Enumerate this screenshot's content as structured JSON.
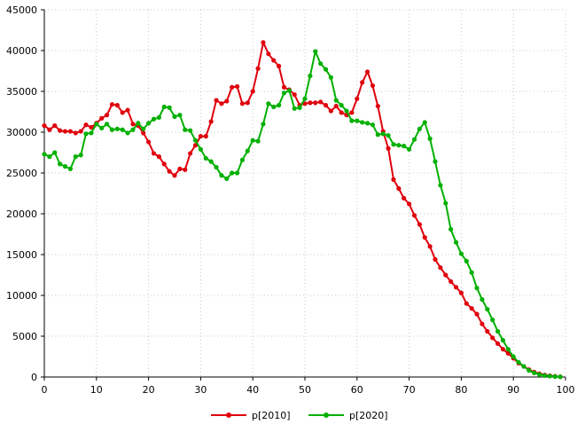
{
  "chart_data": {
    "type": "line",
    "title": "",
    "xlabel": "",
    "ylabel": "",
    "xlim": [
      0,
      100
    ],
    "ylim": [
      0,
      45000
    ],
    "xticks": [
      0,
      10,
      20,
      30,
      40,
      50,
      60,
      70,
      80,
      90,
      100
    ],
    "xtick_labels": [
      "0",
      "10",
      "20",
      "30",
      "40",
      "50",
      "60",
      "70",
      "80",
      "90",
      "100"
    ],
    "yticks": [
      0,
      5000,
      10000,
      15000,
      20000,
      25000,
      30000,
      35000,
      40000,
      45000
    ],
    "ytick_labels": [
      "0",
      "5000",
      "10000",
      "15000",
      "20000",
      "25000",
      "30000",
      "35000",
      "40000",
      "45000"
    ],
    "grid": true,
    "legend_position": "bottom-center",
    "series": [
      {
        "name": "p[2010]",
        "color": "#e0000c",
        "x": [
          0,
          1,
          2,
          3,
          4,
          5,
          6,
          7,
          8,
          9,
          10,
          11,
          12,
          13,
          14,
          15,
          16,
          17,
          18,
          19,
          20,
          21,
          22,
          23,
          24,
          25,
          26,
          27,
          28,
          29,
          30,
          31,
          32,
          33,
          34,
          35,
          36,
          37,
          38,
          39,
          40,
          41,
          42,
          43,
          44,
          45,
          46,
          47,
          48,
          49,
          50,
          51,
          52,
          53,
          54,
          55,
          56,
          57,
          58,
          59,
          60,
          61,
          62,
          63,
          64,
          65,
          66,
          67,
          68,
          69,
          70,
          71,
          72,
          73,
          74,
          75,
          76,
          77,
          78,
          79,
          80,
          81,
          82,
          83,
          84,
          85,
          86,
          87,
          88,
          89,
          90,
          91,
          92,
          93,
          94,
          95,
          96,
          97,
          98,
          99
        ],
        "values": [
          30800,
          30300,
          30800,
          30200,
          30100,
          30100,
          29900,
          30100,
          30900,
          30600,
          31100,
          31700,
          32100,
          33400,
          33300,
          32400,
          32700,
          31000,
          30800,
          29900,
          28800,
          27400,
          27000,
          26100,
          25200,
          24700,
          25500,
          25400,
          27400,
          28400,
          29500,
          29500,
          31300,
          33900,
          33500,
          33800,
          35500,
          35600,
          33500,
          33600,
          35000,
          37800,
          41000,
          39600,
          38800,
          38100,
          35500,
          35200,
          34600,
          33300,
          33500,
          33600,
          33600,
          33700,
          33300,
          32600,
          33200,
          32400,
          32100,
          32400,
          34100,
          36100,
          37400,
          35700,
          33200,
          30100,
          28000,
          24200,
          23100,
          21900,
          21200,
          19800,
          18700,
          17100,
          16000,
          14400,
          13400,
          12500,
          11700,
          11000,
          10300,
          9000,
          8400,
          7700,
          6500,
          5600,
          4800,
          4100,
          3400,
          2900,
          2300,
          1700,
          1300,
          900,
          600,
          400,
          250,
          150,
          80,
          30
        ]
      },
      {
        "name": "p[2020]",
        "color": "#00b000",
        "x": [
          0,
          1,
          2,
          3,
          4,
          5,
          6,
          7,
          8,
          9,
          10,
          11,
          12,
          13,
          14,
          15,
          16,
          17,
          18,
          19,
          20,
          21,
          22,
          23,
          24,
          25,
          26,
          27,
          28,
          29,
          30,
          31,
          32,
          33,
          34,
          35,
          36,
          37,
          38,
          39,
          40,
          41,
          42,
          43,
          44,
          45,
          46,
          47,
          48,
          49,
          50,
          51,
          52,
          53,
          54,
          55,
          56,
          57,
          58,
          59,
          60,
          61,
          62,
          63,
          64,
          65,
          66,
          67,
          68,
          69,
          70,
          71,
          72,
          73,
          74,
          75,
          76,
          77,
          78,
          79,
          80,
          81,
          82,
          83,
          84,
          85,
          86,
          87,
          88,
          89,
          90,
          91,
          92,
          93,
          94,
          95,
          96,
          97,
          98,
          99
        ],
        "values": [
          27300,
          27000,
          27500,
          26100,
          25800,
          25500,
          27000,
          27200,
          29800,
          29900,
          31000,
          30500,
          31000,
          30300,
          30400,
          30300,
          29900,
          30300,
          31100,
          30400,
          31100,
          31600,
          31800,
          33100,
          33000,
          31900,
          32100,
          30300,
          30200,
          29000,
          27900,
          26800,
          26400,
          25700,
          24700,
          24300,
          25000,
          25000,
          26600,
          27700,
          29000,
          28900,
          31000,
          33500,
          33100,
          33300,
          34800,
          35100,
          32900,
          33000,
          34100,
          36900,
          39900,
          38400,
          37700,
          36700,
          33900,
          33300,
          32600,
          31400,
          31400,
          31200,
          31100,
          30900,
          29700,
          29800,
          29600,
          28500,
          28400,
          28300,
          27900,
          29100,
          30400,
          31200,
          29200,
          26400,
          23500,
          21300,
          18100,
          16500,
          15100,
          14200,
          12800,
          10900,
          9500,
          8300,
          7000,
          5600,
          4500,
          3400,
          2500,
          1800,
          1300,
          800,
          500,
          300,
          180,
          100,
          50,
          20
        ]
      }
    ]
  }
}
